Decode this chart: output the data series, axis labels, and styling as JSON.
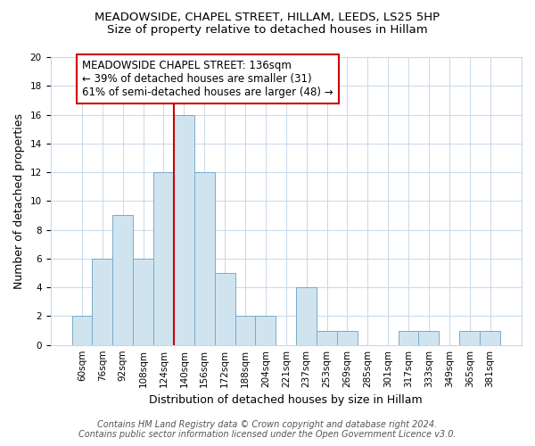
{
  "title": "MEADOWSIDE, CHAPEL STREET, HILLAM, LEEDS, LS25 5HP",
  "subtitle": "Size of property relative to detached houses in Hillam",
  "xlabel": "Distribution of detached houses by size in Hillam",
  "ylabel": "Number of detached properties",
  "bin_labels": [
    "60sqm",
    "76sqm",
    "92sqm",
    "108sqm",
    "124sqm",
    "140sqm",
    "156sqm",
    "172sqm",
    "188sqm",
    "204sqm",
    "221sqm",
    "237sqm",
    "253sqm",
    "269sqm",
    "285sqm",
    "301sqm",
    "317sqm",
    "333sqm",
    "349sqm",
    "365sqm",
    "381sqm"
  ],
  "bar_values": [
    2,
    6,
    9,
    6,
    12,
    16,
    12,
    5,
    2,
    2,
    0,
    4,
    1,
    1,
    0,
    0,
    1,
    1,
    0,
    1,
    1
  ],
  "bar_color": "#d0e4f0",
  "bar_edge_color": "#7aaac8",
  "highlight_line_idx": 5,
  "highlight_line_color": "#cc0000",
  "annotation_line1": "MEADOWSIDE CHAPEL STREET: 136sqm",
  "annotation_line2": "← 39% of detached houses are smaller (31)",
  "annotation_line3": "61% of semi-detached houses are larger (48) →",
  "annotation_box_color": "#ffffff",
  "annotation_box_edge_color": "#cc0000",
  "ylim": [
    0,
    20
  ],
  "yticks": [
    0,
    2,
    4,
    6,
    8,
    10,
    12,
    14,
    16,
    18,
    20
  ],
  "footer_line1": "Contains HM Land Registry data © Crown copyright and database right 2024.",
  "footer_line2": "Contains public sector information licensed under the Open Government Licence v3.0.",
  "title_fontsize": 9.5,
  "subtitle_fontsize": 9.5,
  "axis_label_fontsize": 9,
  "tick_fontsize": 7.5,
  "annotation_fontsize": 8.5,
  "footer_fontsize": 7,
  "grid_color": "#c8d8e8"
}
